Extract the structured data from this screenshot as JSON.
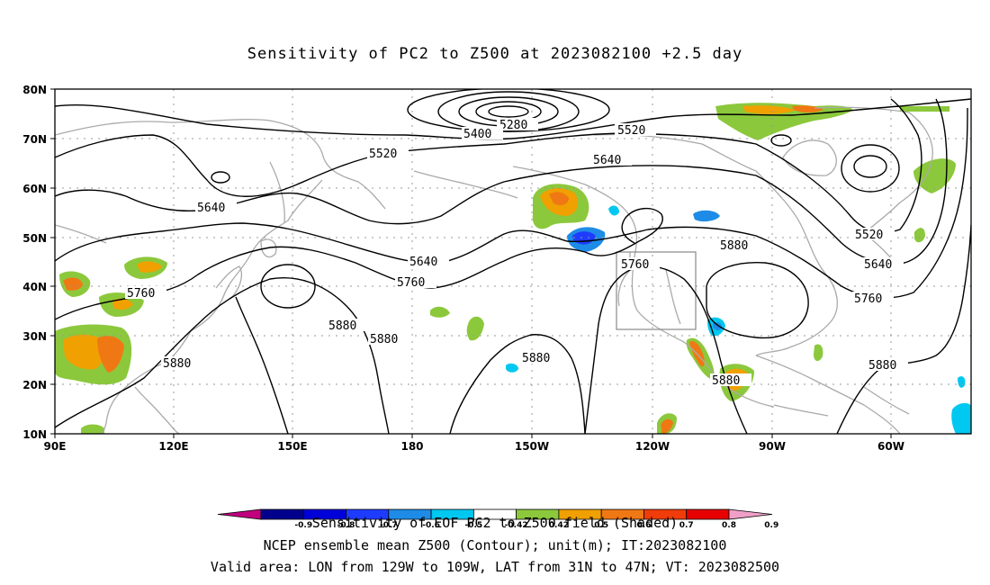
{
  "title": "Sensitivity of PC2 to Z500 at 2023082100 +2.5 day",
  "axes": {
    "lat_labels": [
      "80N",
      "70N",
      "60N",
      "50N",
      "40N",
      "30N",
      "20N",
      "10N"
    ],
    "lon_labels": [
      "90E",
      "120E",
      "150E",
      "180",
      "150W",
      "120W",
      "90W",
      "60W"
    ]
  },
  "contour_labels": {
    "c5280": "5280",
    "c5400": "5400",
    "c5520a": "5520",
    "c5520b": "5520",
    "c5520c": "5520",
    "c5640a": "5640",
    "c5640b": "5640",
    "c5640c": "5640",
    "c5640d": "5640",
    "c5760a": "5760",
    "c5760b": "5760",
    "c5760c": "5760",
    "c5760d": "5760",
    "c5880a": "5880",
    "c5880b": "5880",
    "c5880c": "5880",
    "c5880d": "5880",
    "c5880e": "5880",
    "c5880f": "5880"
  },
  "colorbar": {
    "ticks": [
      "-0.9",
      "-0.8",
      "-0.7",
      "-0.6",
      "-0.5",
      "-0.42",
      "0.42",
      "0.5",
      "0.6",
      "0.7",
      "0.8",
      "0.9"
    ],
    "colors": [
      "#c0007f",
      "#00008c",
      "#0000d8",
      "#1e3cff",
      "#1e8ce6",
      "#00c8f0",
      "#ffffff",
      "#8cc83c",
      "#f0a000",
      "#f07814",
      "#f03c0a",
      "#e60000",
      "#f0a0c8"
    ]
  },
  "footer": {
    "line1": "Sensitivity of EOF PC2 to Z500 field (Shaded)",
    "line2": "NCEP ensemble mean Z500 (Contour); unit(m); IT:2023082100",
    "line3": "Valid area: LON from 129W to 109W, LAT from 31N to 47N; VT: 2023082500"
  },
  "colors": {
    "land": "#aaaaaa",
    "grid": "#999999",
    "contour": "#000000",
    "box": "#888888"
  }
}
